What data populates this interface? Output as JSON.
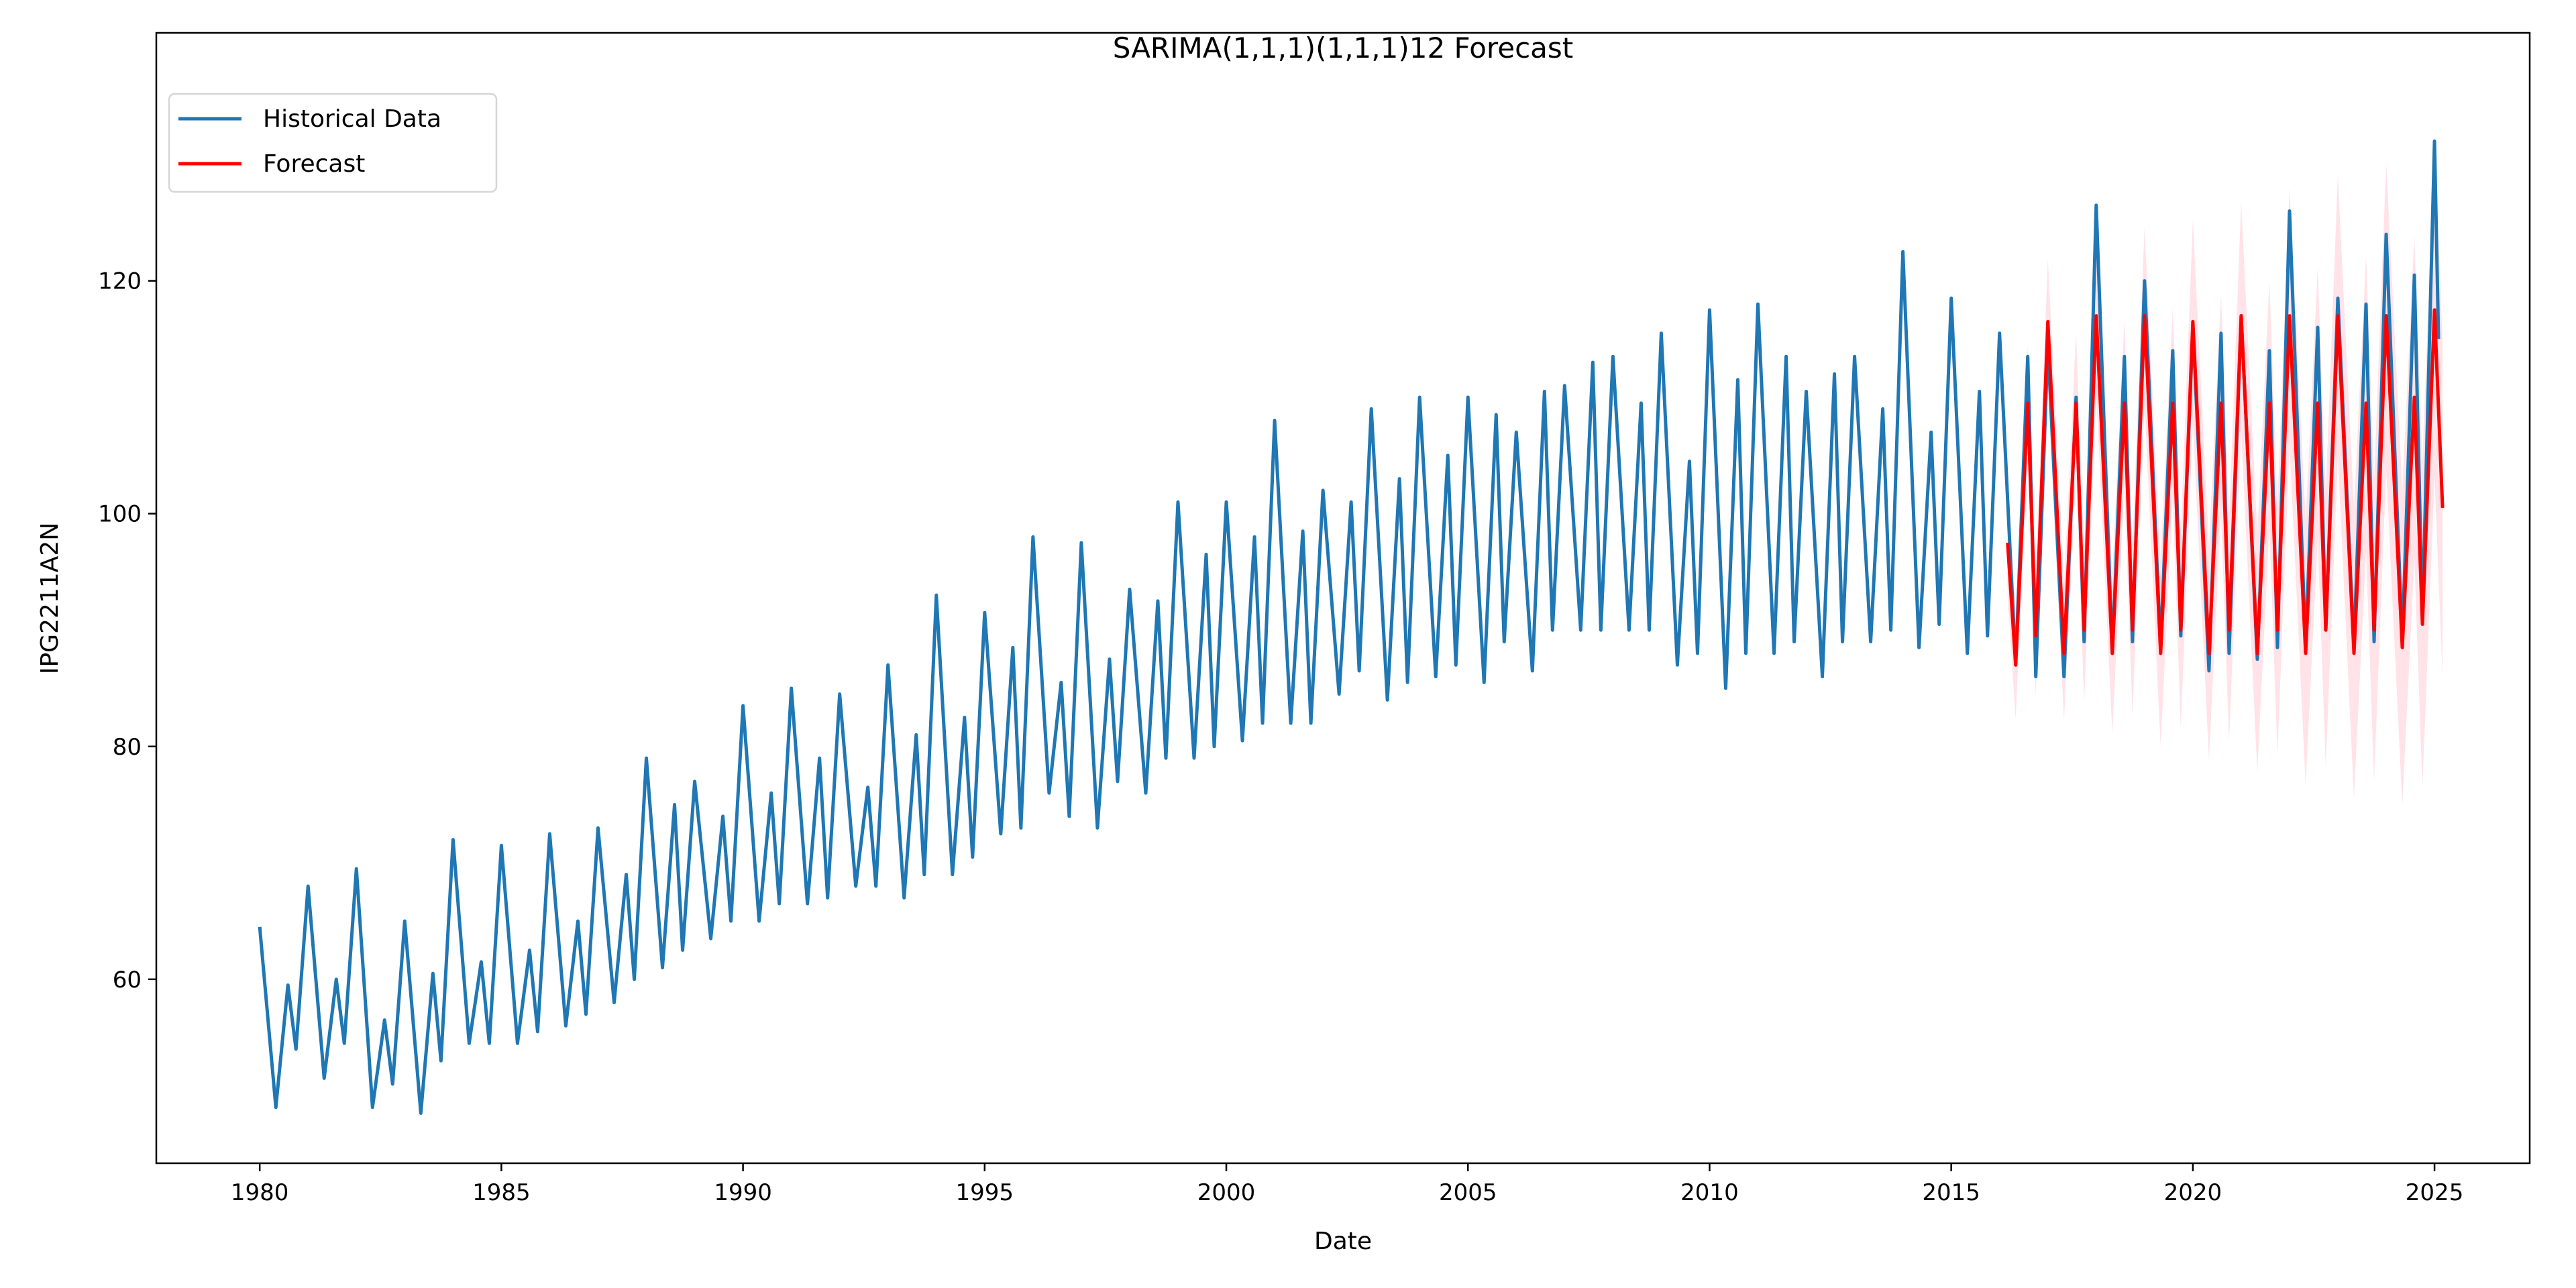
{
  "chart_data": {
    "type": "line",
    "title": "SARIMA(1,1,1)(1,1,1)12 Forecast",
    "xlabel": "Date",
    "ylabel": "IPG2211A2N",
    "xlim": [
      1977.86,
      2026.97
    ],
    "ylim": [
      44.2,
      141.3
    ],
    "xticks": [
      1980,
      1985,
      1990,
      1995,
      2000,
      2005,
      2010,
      2015,
      2020,
      2025
    ],
    "xtick_labels": [
      "1980",
      "1985",
      "1990",
      "1995",
      "2000",
      "2005",
      "2010",
      "2015",
      "2020",
      "2025"
    ],
    "yticks": [
      60,
      80,
      100,
      120
    ],
    "ytick_labels": [
      "60",
      "80",
      "100",
      "120"
    ],
    "grid": false,
    "legend": {
      "placement": "top-left",
      "entries": [
        "Historical Data",
        "Forecast"
      ]
    },
    "colors": {
      "historical": "#1f77b4",
      "forecast": "#ff0000",
      "confidence_band": "#ffc0cb"
    },
    "series": [
      {
        "name": "Historical Data",
        "months": [
          1,
          5,
          8,
          10
        ],
        "rows": [
          [
            1980,
            64.5,
            49,
            59.5,
            54
          ],
          [
            1981,
            68,
            51.5,
            60,
            54.5
          ],
          [
            1982,
            69.5,
            49,
            56.5,
            51
          ],
          [
            1983,
            65,
            48.5,
            60.5,
            53
          ],
          [
            1984,
            72,
            54.5,
            61.5,
            54.5
          ],
          [
            1985,
            71.5,
            54.5,
            62.5,
            55.5
          ],
          [
            1986,
            72.5,
            56,
            65,
            57
          ],
          [
            1987,
            73,
            58,
            69,
            60
          ],
          [
            1988,
            79,
            61,
            75,
            62.5
          ],
          [
            1989,
            77,
            63.5,
            74,
            65
          ],
          [
            1990,
            83.5,
            65,
            76,
            66.5
          ],
          [
            1991,
            85,
            66.5,
            79,
            67
          ],
          [
            1992,
            84.5,
            68,
            76.5,
            68
          ],
          [
            1993,
            87,
            67,
            81,
            69
          ],
          [
            1994,
            93,
            69,
            82.5,
            70.5
          ],
          [
            1995,
            91.5,
            72.5,
            88.5,
            73
          ],
          [
            1996,
            98,
            76,
            85.5,
            74
          ],
          [
            1997,
            97.5,
            73,
            87.5,
            77
          ],
          [
            1998,
            93.5,
            76,
            92.5,
            79
          ],
          [
            1999,
            101,
            79,
            96.5,
            80
          ],
          [
            2000,
            101,
            80.5,
            98,
            82
          ],
          [
            2001,
            108,
            82,
            98.5,
            82
          ],
          [
            2002,
            102,
            84.5,
            101,
            86.5
          ],
          [
            2003,
            109,
            84,
            103,
            85.5
          ],
          [
            2004,
            110,
            86,
            105,
            87
          ],
          [
            2005,
            110,
            85.5,
            108.5,
            89
          ],
          [
            2006,
            107,
            86.5,
            110.5,
            90
          ],
          [
            2007,
            111,
            90,
            113,
            90
          ],
          [
            2008,
            113.5,
            90,
            109.5,
            90
          ],
          [
            2009,
            115.5,
            87,
            104.5,
            88
          ],
          [
            2010,
            117.5,
            85,
            111.5,
            88
          ],
          [
            2011,
            118,
            88,
            113.5,
            89
          ],
          [
            2012,
            110.5,
            86,
            112,
            89
          ],
          [
            2013,
            113.5,
            89,
            109,
            90
          ],
          [
            2014,
            122.5,
            88.5,
            107,
            90.5
          ],
          [
            2015,
            118.5,
            88,
            110.5,
            89.5
          ],
          [
            2016,
            115.5,
            87,
            113.5,
            86
          ],
          [
            2017,
            114.5,
            86,
            110,
            89
          ],
          [
            2018,
            126.5,
            88,
            113.5,
            89
          ],
          [
            2019,
            120,
            88.5,
            114,
            89.5
          ],
          [
            2020,
            116,
            86.5,
            115.5,
            88
          ],
          [
            2021,
            117,
            87.5,
            114,
            88.5
          ],
          [
            2022,
            126,
            88.5,
            116,
            90
          ],
          [
            2023,
            118.5,
            88.5,
            118,
            89
          ],
          [
            2024,
            124,
            89,
            120.5,
            91
          ],
          [
            2025,
            132,
            null,
            null,
            null
          ]
        ],
        "end_point": [
          "2025-02",
          115
        ]
      },
      {
        "name": "Forecast",
        "start_point": [
          "2016-03",
          97.5
        ],
        "months": [
          1,
          5,
          8,
          10
        ],
        "rows": [
          [
            2016,
            null,
            87,
            109.5,
            89.5
          ],
          [
            2017,
            116.5,
            88,
            109.5,
            90
          ],
          [
            2018,
            117,
            88,
            109.5,
            90
          ],
          [
            2019,
            117,
            88,
            109.5,
            90
          ],
          [
            2020,
            116.5,
            88,
            109.5,
            90
          ],
          [
            2021,
            117,
            88,
            109.5,
            90
          ],
          [
            2022,
            117,
            88,
            109.5,
            90
          ],
          [
            2023,
            117,
            88,
            109.5,
            90
          ],
          [
            2024,
            117,
            88.5,
            110,
            90.5
          ],
          [
            2025,
            117.5,
            null,
            null,
            null
          ]
        ],
        "end_point": [
          "2025-03",
          100.5
        ],
        "confidence_halfwidth": {
          "start": 4.5,
          "end": 14.5
        }
      }
    ]
  }
}
